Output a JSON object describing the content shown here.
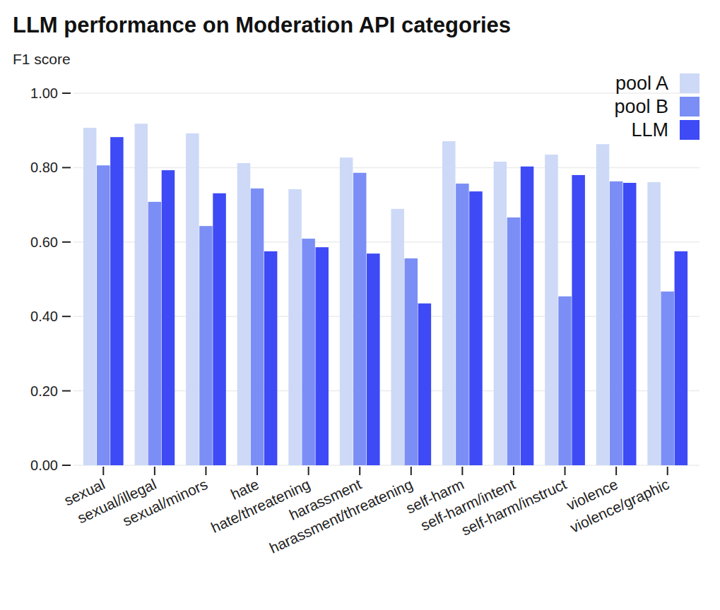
{
  "chart_data": {
    "type": "bar",
    "title": "LLM performance on Moderation API categories",
    "y_label": "F1 score",
    "categories": [
      "sexual",
      "sexual/illegal",
      "sexual/minors",
      "hate",
      "hate/threatening",
      "harassment",
      "harassment/threatening",
      "self-harm",
      "self-harm/intent",
      "self-harm/instruct",
      "violence",
      "violence/graphic"
    ],
    "series": [
      {
        "name": "pool A",
        "color": "#cdd9f7",
        "values": [
          0.907,
          0.918,
          0.892,
          0.812,
          0.742,
          0.827,
          0.689,
          0.871,
          0.816,
          0.835,
          0.863,
          0.761
        ]
      },
      {
        "name": "pool B",
        "color": "#7b8ef5",
        "values": [
          0.806,
          0.708,
          0.643,
          0.744,
          0.609,
          0.786,
          0.556,
          0.757,
          0.666,
          0.454,
          0.763,
          0.467
        ]
      },
      {
        "name": "LLM",
        "color": "#3d4af5",
        "values": [
          0.882,
          0.793,
          0.731,
          0.575,
          0.586,
          0.569,
          0.435,
          0.736,
          0.803,
          0.78,
          0.759,
          0.575
        ]
      }
    ],
    "ylim": [
      0,
      1
    ],
    "yticks": [
      {
        "value": 0,
        "label": "0.00"
      },
      {
        "value": 0.2,
        "label": "0.20"
      },
      {
        "value": 0.4,
        "label": "0.40"
      },
      {
        "value": 0.6,
        "label": "0.60"
      },
      {
        "value": 0.8,
        "label": "0.80"
      },
      {
        "value": 1,
        "label": "1.00"
      }
    ],
    "grid": true,
    "legend": "upper right"
  }
}
